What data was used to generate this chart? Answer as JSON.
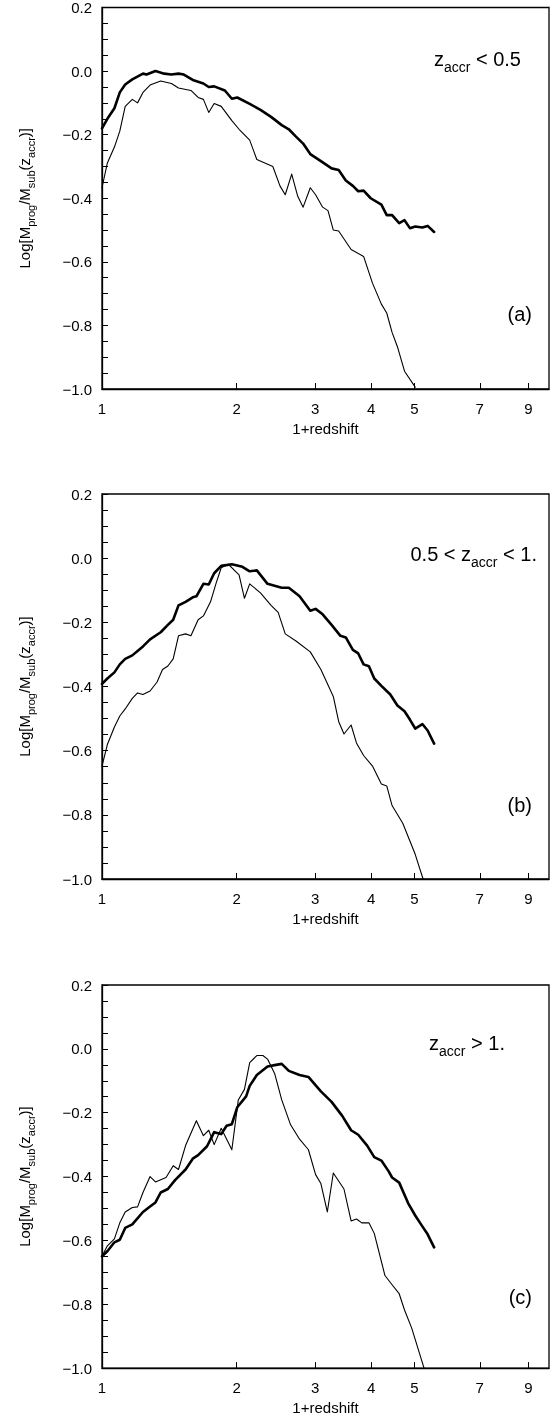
{
  "chart_data": [
    {
      "type": "line",
      "xlabel": "1+redshift",
      "ylabel": "Log[M$_{prog}$/M$_{sub}$(z$_{accr}$)]",
      "annotations": [
        "z$_{accr}$ < 0.5",
        "(a)"
      ],
      "log": "x",
      "xlim": [
        1,
        10
      ],
      "ylim": [
        -1.0,
        0.2
      ],
      "xticks": [
        1,
        2,
        3,
        4,
        5,
        7,
        9
      ],
      "yticks": [
        {
          "value": -1.0,
          "label": "−1.0"
        },
        {
          "value": -0.95,
          "label": null
        },
        {
          "value": -0.9,
          "label": null
        },
        {
          "value": -0.85,
          "label": null
        },
        {
          "value": -0.8,
          "label": "−0.8"
        },
        {
          "value": -0.75,
          "label": null
        },
        {
          "value": -0.7,
          "label": null
        },
        {
          "value": -0.65,
          "label": null
        },
        {
          "value": -0.6,
          "label": "−0.6"
        },
        {
          "value": -0.55,
          "label": null
        },
        {
          "value": -0.5,
          "label": null
        },
        {
          "value": -0.45,
          "label": null
        },
        {
          "value": -0.4,
          "label": "−0.4"
        },
        {
          "value": -0.35,
          "label": null
        },
        {
          "value": -0.3,
          "label": null
        },
        {
          "value": -0.25,
          "label": null
        },
        {
          "value": -0.2,
          "label": "−0.2"
        },
        {
          "value": -0.15,
          "label": null
        },
        {
          "value": -0.1,
          "label": null
        },
        {
          "value": -0.05,
          "label": null
        },
        {
          "value": 0,
          "label": "0.0"
        },
        {
          "value": 0.05,
          "label": null
        },
        {
          "value": 0.1,
          "label": null
        },
        {
          "value": 0.15,
          "label": null
        },
        {
          "value": 0.2,
          "label": "0.2"
        }
      ],
      "grid": false,
      "marker": "none",
      "line_style": "solid",
      "series": [
        {
          "color": "#000000",
          "x": [
            1.0,
            1.028,
            1.066,
            1.096,
            1.127,
            1.169,
            1.235,
            1.258,
            1.317,
            1.378,
            1.43,
            1.483,
            1.524,
            1.596,
            1.686,
            1.733,
            1.782,
            1.883,
            1.952,
            2.007,
            2.14,
            2.262,
            2.389,
            2.524,
            2.618,
            2.716,
            2.818,
            2.924,
            3.088,
            3.263,
            3.384,
            3.511,
            3.641,
            3.743,
            3.848,
            3.991,
            4.217,
            4.335,
            4.456,
            4.622,
            4.751,
            4.884,
            5.02,
            5.208,
            5.352,
            5.533
          ],
          "values": [
            -0.18,
            -0.15,
            -0.117,
            -0.067,
            -0.042,
            -0.026,
            -0.008,
            -0.011,
            0.0,
            -0.008,
            -0.011,
            -0.008,
            -0.011,
            -0.028,
            -0.039,
            -0.05,
            -0.048,
            -0.061,
            -0.087,
            -0.083,
            -0.103,
            -0.122,
            -0.144,
            -0.17,
            -0.183,
            -0.206,
            -0.228,
            -0.261,
            -0.283,
            -0.306,
            -0.311,
            -0.344,
            -0.361,
            -0.378,
            -0.376,
            -0.4,
            -0.42,
            -0.453,
            -0.453,
            -0.478,
            -0.469,
            -0.494,
            -0.489,
            -0.492,
            -0.487,
            -0.506
          ]
        },
        {
          "color": "#000000",
          "x": [
            1.0,
            1.028,
            1.066,
            1.096,
            1.127,
            1.169,
            1.201,
            1.235,
            1.281,
            1.353,
            1.43,
            1.483,
            1.581,
            1.641,
            1.686,
            1.733,
            1.782,
            1.848,
            1.952,
            2.026,
            2.14,
            2.22,
            2.411,
            2.501,
            2.57,
            2.657,
            2.741,
            2.818,
            2.924,
            3.005,
            3.116,
            3.203,
            3.292,
            3.384,
            3.608,
            3.848,
            4.028,
            4.217,
            4.335,
            4.456,
            4.58,
            4.751,
            5.02
          ],
          "values": [
            -0.367,
            -0.289,
            -0.239,
            -0.189,
            -0.111,
            -0.089,
            -0.1,
            -0.067,
            -0.044,
            -0.031,
            -0.039,
            -0.053,
            -0.061,
            -0.083,
            -0.089,
            -0.13,
            -0.102,
            -0.111,
            -0.156,
            -0.183,
            -0.217,
            -0.278,
            -0.3,
            -0.361,
            -0.389,
            -0.324,
            -0.394,
            -0.428,
            -0.367,
            -0.389,
            -0.428,
            -0.439,
            -0.5,
            -0.503,
            -0.561,
            -0.583,
            -0.667,
            -0.733,
            -0.761,
            -0.822,
            -0.867,
            -0.944,
            -0.994
          ]
        }
      ]
    },
    {
      "type": "line",
      "xlabel": "1+redshift",
      "ylabel": "Log[M$_{prog}$/M$_{sub}$(z$_{accr}$)]",
      "annotations": [
        "0.5 < z$_{accr}$ < 1.",
        "(b)"
      ],
      "log": "x",
      "xlim": [
        1,
        10
      ],
      "ylim": [
        -1.0,
        0.2
      ],
      "xticks": [
        1,
        2,
        3,
        4,
        5,
        7,
        9
      ],
      "yticks": [
        {
          "value": -1.0,
          "label": "−1.0"
        },
        {
          "value": -0.95,
          "label": null
        },
        {
          "value": -0.9,
          "label": null
        },
        {
          "value": -0.85,
          "label": null
        },
        {
          "value": -0.8,
          "label": "−0.8"
        },
        {
          "value": -0.75,
          "label": null
        },
        {
          "value": -0.7,
          "label": null
        },
        {
          "value": -0.65,
          "label": null
        },
        {
          "value": -0.6,
          "label": "−0.6"
        },
        {
          "value": -0.55,
          "label": null
        },
        {
          "value": -0.5,
          "label": null
        },
        {
          "value": -0.45,
          "label": null
        },
        {
          "value": -0.4,
          "label": "−0.4"
        },
        {
          "value": -0.35,
          "label": null
        },
        {
          "value": -0.3,
          "label": null
        },
        {
          "value": -0.25,
          "label": null
        },
        {
          "value": -0.2,
          "label": "−0.2"
        },
        {
          "value": -0.15,
          "label": null
        },
        {
          "value": -0.1,
          "label": null
        },
        {
          "value": -0.05,
          "label": null
        },
        {
          "value": 0,
          "label": "0.0"
        },
        {
          "value": 0.05,
          "label": null
        },
        {
          "value": 0.1,
          "label": null
        },
        {
          "value": 0.15,
          "label": null
        },
        {
          "value": 0.2,
          "label": "0.2"
        }
      ],
      "grid": false,
      "marker": "none",
      "line_style": "solid",
      "series": [
        {
          "color": "#000000",
          "x": [
            1.0,
            1.028,
            1.066,
            1.096,
            1.127,
            1.169,
            1.235,
            1.281,
            1.353,
            1.404,
            1.443,
            1.483,
            1.538,
            1.596,
            1.626,
            1.686,
            1.733,
            1.782,
            1.848,
            1.952,
            2.061,
            2.14,
            2.22,
            2.346,
            2.433,
            2.524,
            2.618,
            2.767,
            2.924,
            3.005,
            3.116,
            3.263,
            3.415,
            3.511,
            3.641,
            3.743,
            3.848,
            3.955,
            4.065,
            4.217,
            4.415,
            4.58,
            4.751,
            4.884,
            5.02,
            5.208,
            5.352,
            5.533
          ],
          "values": [
            -0.392,
            -0.375,
            -0.356,
            -0.331,
            -0.314,
            -0.303,
            -0.275,
            -0.253,
            -0.231,
            -0.208,
            -0.192,
            -0.147,
            -0.136,
            -0.122,
            -0.119,
            -0.08,
            -0.082,
            -0.047,
            -0.024,
            -0.019,
            -0.027,
            -0.041,
            -0.038,
            -0.08,
            -0.086,
            -0.092,
            -0.092,
            -0.119,
            -0.164,
            -0.158,
            -0.175,
            -0.208,
            -0.242,
            -0.247,
            -0.286,
            -0.297,
            -0.331,
            -0.337,
            -0.375,
            -0.398,
            -0.425,
            -0.459,
            -0.477,
            -0.503,
            -0.531,
            -0.517,
            -0.537,
            -0.578
          ]
        },
        {
          "color": "#000000",
          "x": [
            1.0,
            1.028,
            1.066,
            1.096,
            1.127,
            1.169,
            1.201,
            1.235,
            1.281,
            1.328,
            1.366,
            1.404,
            1.443,
            1.483,
            1.538,
            1.581,
            1.641,
            1.686,
            1.749,
            1.798,
            1.848,
            1.917,
            1.989,
            2.026,
            2.083,
            2.14,
            2.262,
            2.389,
            2.478,
            2.57,
            2.716,
            2.924,
            3.088,
            3.292,
            3.384,
            3.478,
            3.608,
            3.709,
            3.848,
            4.028,
            4.217,
            4.335,
            4.456,
            4.708,
            5.02,
            5.227
          ],
          "values": [
            -0.648,
            -0.581,
            -0.526,
            -0.492,
            -0.47,
            -0.437,
            -0.42,
            -0.425,
            -0.414,
            -0.386,
            -0.347,
            -0.336,
            -0.314,
            -0.242,
            -0.236,
            -0.242,
            -0.192,
            -0.18,
            -0.136,
            -0.08,
            -0.03,
            -0.019,
            -0.041,
            -0.052,
            -0.125,
            -0.08,
            -0.108,
            -0.147,
            -0.169,
            -0.236,
            -0.258,
            -0.292,
            -0.347,
            -0.431,
            -0.509,
            -0.548,
            -0.52,
            -0.576,
            -0.615,
            -0.648,
            -0.704,
            -0.71,
            -0.771,
            -0.826,
            -0.923,
            -1.0
          ]
        }
      ]
    },
    {
      "type": "line",
      "xlabel": "1+redshift",
      "ylabel": "Log[M$_{prog}$/M$_{sub}$(z$_{accr}$)]",
      "annotations": [
        "z$_{accr}$ > 1.",
        "(c)"
      ],
      "log": "x",
      "xlim": [
        1,
        10
      ],
      "ylim": [
        -1.0,
        0.2
      ],
      "xticks": [
        1,
        2,
        3,
        4,
        5,
        7,
        9
      ],
      "yticks": [
        {
          "value": -1.0,
          "label": "−1.0"
        },
        {
          "value": -0.95,
          "label": null
        },
        {
          "value": -0.9,
          "label": null
        },
        {
          "value": -0.85,
          "label": null
        },
        {
          "value": -0.8,
          "label": "−0.8"
        },
        {
          "value": -0.75,
          "label": null
        },
        {
          "value": -0.7,
          "label": null
        },
        {
          "value": -0.65,
          "label": null
        },
        {
          "value": -0.6,
          "label": "−0.6"
        },
        {
          "value": -0.55,
          "label": null
        },
        {
          "value": -0.5,
          "label": null
        },
        {
          "value": -0.45,
          "label": null
        },
        {
          "value": -0.4,
          "label": "−0.4"
        },
        {
          "value": -0.35,
          "label": null
        },
        {
          "value": -0.3,
          "label": null
        },
        {
          "value": -0.25,
          "label": null
        },
        {
          "value": -0.2,
          "label": "−0.2"
        },
        {
          "value": -0.15,
          "label": null
        },
        {
          "value": -0.1,
          "label": null
        },
        {
          "value": -0.05,
          "label": null
        },
        {
          "value": 0,
          "label": "0.0"
        },
        {
          "value": 0.05,
          "label": null
        },
        {
          "value": 0.1,
          "label": null
        },
        {
          "value": 0.15,
          "label": null
        },
        {
          "value": 0.2,
          "label": "0.2"
        }
      ],
      "grid": false,
      "marker": "none",
      "line_style": "solid",
      "series": [
        {
          "color": "#000000",
          "x": [
            1.0,
            1.028,
            1.066,
            1.096,
            1.127,
            1.169,
            1.235,
            1.281,
            1.317,
            1.353,
            1.404,
            1.457,
            1.538,
            1.596,
            1.641,
            1.718,
            1.782,
            1.848,
            1.9,
            1.952,
            2.007,
            2.101,
            2.14,
            2.22,
            2.346,
            2.433,
            2.524,
            2.618,
            2.767,
            2.896,
            3.088,
            3.263,
            3.447,
            3.608,
            3.743,
            3.919,
            4.065,
            4.217,
            4.375,
            4.456,
            4.622,
            4.839,
            5.02,
            5.208,
            5.352,
            5.533
          ],
          "values": [
            -0.65,
            -0.634,
            -0.606,
            -0.598,
            -0.561,
            -0.55,
            -0.511,
            -0.494,
            -0.481,
            -0.45,
            -0.439,
            -0.411,
            -0.378,
            -0.344,
            -0.333,
            -0.305,
            -0.261,
            -0.267,
            -0.241,
            -0.236,
            -0.183,
            -0.149,
            -0.116,
            -0.082,
            -0.055,
            -0.051,
            -0.047,
            -0.069,
            -0.082,
            -0.088,
            -0.133,
            -0.166,
            -0.21,
            -0.255,
            -0.269,
            -0.303,
            -0.339,
            -0.35,
            -0.383,
            -0.403,
            -0.419,
            -0.483,
            -0.522,
            -0.556,
            -0.581,
            -0.622
          ]
        },
        {
          "color": "#000000",
          "x": [
            1.0,
            1.028,
            1.066,
            1.096,
            1.127,
            1.169,
            1.201,
            1.235,
            1.281,
            1.317,
            1.391,
            1.443,
            1.483,
            1.538,
            1.626,
            1.686,
            1.733,
            1.782,
            1.848,
            1.952,
            2.018,
            2.083,
            2.14,
            2.22,
            2.29,
            2.346,
            2.433,
            2.524,
            2.642,
            2.767,
            2.896,
            3.005,
            3.088,
            3.192,
            3.292,
            3.478,
            3.608,
            3.709,
            3.813,
            3.955,
            4.065,
            4.295,
            4.456,
            4.622,
            4.751,
            4.928,
            5.254
          ],
          "values": [
            -0.65,
            -0.617,
            -0.595,
            -0.545,
            -0.511,
            -0.497,
            -0.495,
            -0.45,
            -0.4,
            -0.417,
            -0.403,
            -0.366,
            -0.378,
            -0.303,
            -0.225,
            -0.272,
            -0.255,
            -0.3,
            -0.249,
            -0.316,
            -0.16,
            -0.127,
            -0.043,
            -0.021,
            -0.021,
            -0.032,
            -0.077,
            -0.16,
            -0.238,
            -0.283,
            -0.316,
            -0.394,
            -0.422,
            -0.511,
            -0.389,
            -0.439,
            -0.539,
            -0.533,
            -0.545,
            -0.545,
            -0.578,
            -0.71,
            -0.739,
            -0.767,
            -0.818,
            -0.874,
            -1.0
          ]
        }
      ]
    }
  ]
}
